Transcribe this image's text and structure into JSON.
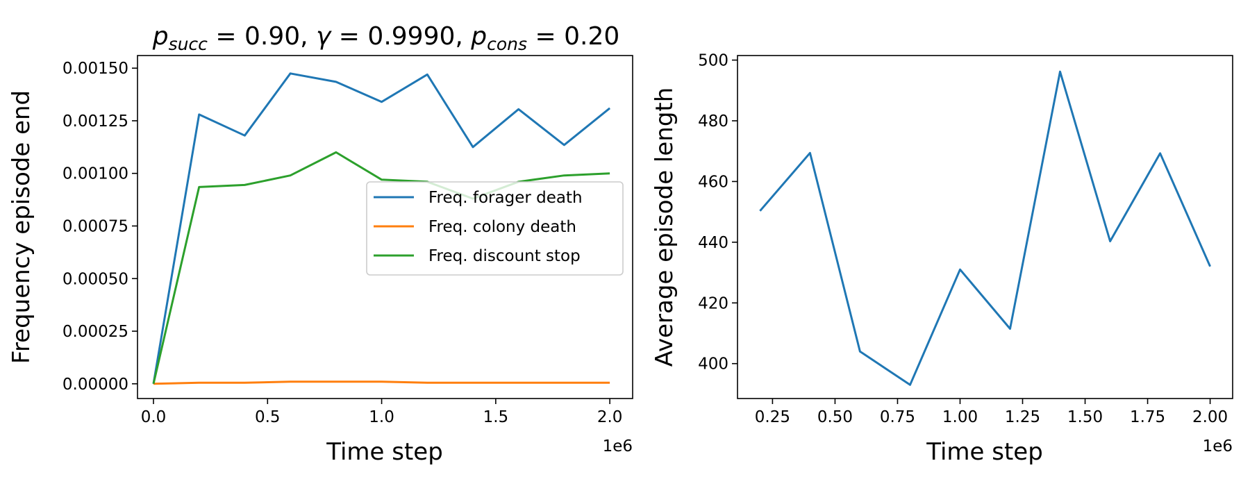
{
  "chart_data": [
    {
      "type": "line",
      "title": {
        "p_sym": "p",
        "p_succ_sub": "succ",
        "p_succ_val": "0.90",
        "gamma_sym": "γ",
        "gamma_val": "0.9990",
        "p_cons_sub": "cons",
        "p_cons_val": "0.20"
      },
      "xlabel": "Time step",
      "ylabel": "Frequency episode end",
      "x_offset_label": "1e6",
      "xlim": [
        -0.07,
        2.1
      ],
      "ylim": [
        -7e-05,
        0.00156
      ],
      "x_ticks": [
        0.0,
        0.5,
        1.0,
        1.5,
        2.0
      ],
      "x_tick_labels": [
        "0.0",
        "0.5",
        "1.0",
        "1.5",
        "2.0"
      ],
      "y_ticks": [
        0.0,
        0.00025,
        0.0005,
        0.00075,
        0.001,
        0.00125,
        0.0015
      ],
      "y_tick_labels": [
        "0.00000",
        "0.00025",
        "0.00050",
        "0.00075",
        "0.00100",
        "0.00125",
        "0.00150"
      ],
      "x": [
        0.0,
        0.2,
        0.4,
        0.6,
        0.8,
        1.0,
        1.2,
        1.4,
        1.6,
        1.8,
        2.0
      ],
      "legend_position": "center-right",
      "series": [
        {
          "name": "Freq. forager death",
          "color": "#1f77b4",
          "values": [
            0.0,
            0.00128,
            0.00118,
            0.001475,
            0.001435,
            0.00134,
            0.00147,
            0.001125,
            0.001305,
            0.001135,
            0.00131
          ]
        },
        {
          "name": "Freq. colony death",
          "color": "#ff7f0e",
          "values": [
            0.0,
            5e-06,
            5e-06,
            1e-05,
            1e-05,
            1e-05,
            5e-06,
            5e-06,
            5e-06,
            5e-06,
            5e-06
          ]
        },
        {
          "name": "Freq. discount stop",
          "color": "#2ca02c",
          "values": [
            0.0,
            0.000935,
            0.000945,
            0.00099,
            0.0011,
            0.00097,
            0.00096,
            0.00088,
            0.00096,
            0.00099,
            0.001
          ]
        }
      ]
    },
    {
      "type": "line",
      "xlabel": "Time step",
      "ylabel": "Average episode length",
      "x_offset_label": "1e6",
      "xlim": [
        0.11,
        2.09
      ],
      "ylim": [
        388.5,
        501.5
      ],
      "x_ticks": [
        0.25,
        0.5,
        0.75,
        1.0,
        1.25,
        1.5,
        1.75,
        2.0
      ],
      "x_tick_labels": [
        "0.25",
        "0.50",
        "0.75",
        "1.00",
        "1.25",
        "1.50",
        "1.75",
        "2.00"
      ],
      "y_ticks": [
        400,
        420,
        440,
        460,
        480,
        500
      ],
      "y_tick_labels": [
        "400",
        "420",
        "440",
        "460",
        "480",
        "500"
      ],
      "x": [
        0.2,
        0.4,
        0.6,
        0.8,
        1.0,
        1.2,
        1.4,
        1.6,
        1.8,
        2.0
      ],
      "series": [
        {
          "color": "#1f77b4",
          "values": [
            450.3,
            469.4,
            404.0,
            393.0,
            431.0,
            411.5,
            496.2,
            440.3,
            469.3,
            432.0
          ]
        }
      ]
    }
  ]
}
